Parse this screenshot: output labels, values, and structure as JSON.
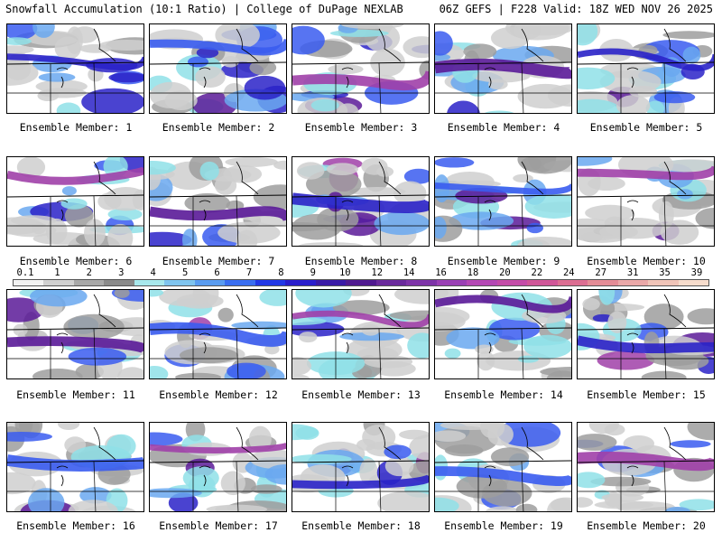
{
  "header": {
    "title_left": "Snowfall Accumulation (10:1 Ratio) | College of DuPage NEXLAB",
    "title_right": "06Z GEFS | F228 Valid: 18Z WED NOV 26 2025"
  },
  "panels": [
    {
      "label": "Ensemble Member: 1"
    },
    {
      "label": "Ensemble Member: 2"
    },
    {
      "label": "Ensemble Member: 3"
    },
    {
      "label": "Ensemble Member: 4"
    },
    {
      "label": "Ensemble Member: 5"
    },
    {
      "label": "Ensemble Member: 6"
    },
    {
      "label": "Ensemble Member: 7"
    },
    {
      "label": "Ensemble Member: 8"
    },
    {
      "label": "Ensemble Member: 9"
    },
    {
      "label": "Ensemble Member: 10"
    },
    {
      "label": "Ensemble Member: 11"
    },
    {
      "label": "Ensemble Member: 12"
    },
    {
      "label": "Ensemble Member: 13"
    },
    {
      "label": "Ensemble Member: 14"
    },
    {
      "label": "Ensemble Member: 15"
    },
    {
      "label": "Ensemble Member: 16"
    },
    {
      "label": "Ensemble Member: 17"
    },
    {
      "label": "Ensemble Member: 18"
    },
    {
      "label": "Ensemble Member: 19"
    },
    {
      "label": "Ensemble Member: 20"
    }
  ],
  "colorbar": {
    "ticks": [
      "0.1",
      "1",
      "2",
      "3",
      "4",
      "5",
      "6",
      "7",
      "8",
      "9",
      "10",
      "12",
      "14",
      "16",
      "18",
      "20",
      "22",
      "24",
      "27",
      "31",
      "35",
      "39"
    ],
    "colors": [
      "#f2f2f2",
      "#d0d0d0",
      "#a8a8a8",
      "#8a8a8a",
      "#a8e8ec",
      "#7fc4ee",
      "#5a9cf0",
      "#3a6ef0",
      "#2238e6",
      "#2a1ecc",
      "#3a1aa6",
      "#501a90",
      "#6a2a9c",
      "#7e34a8",
      "#9a40b4",
      "#b448b4",
      "#c44ca8",
      "#d05698",
      "#dc6e92",
      "#e48c96",
      "#eaa8a8",
      "#f0c4b8",
      "#f6dccc"
    ]
  }
}
